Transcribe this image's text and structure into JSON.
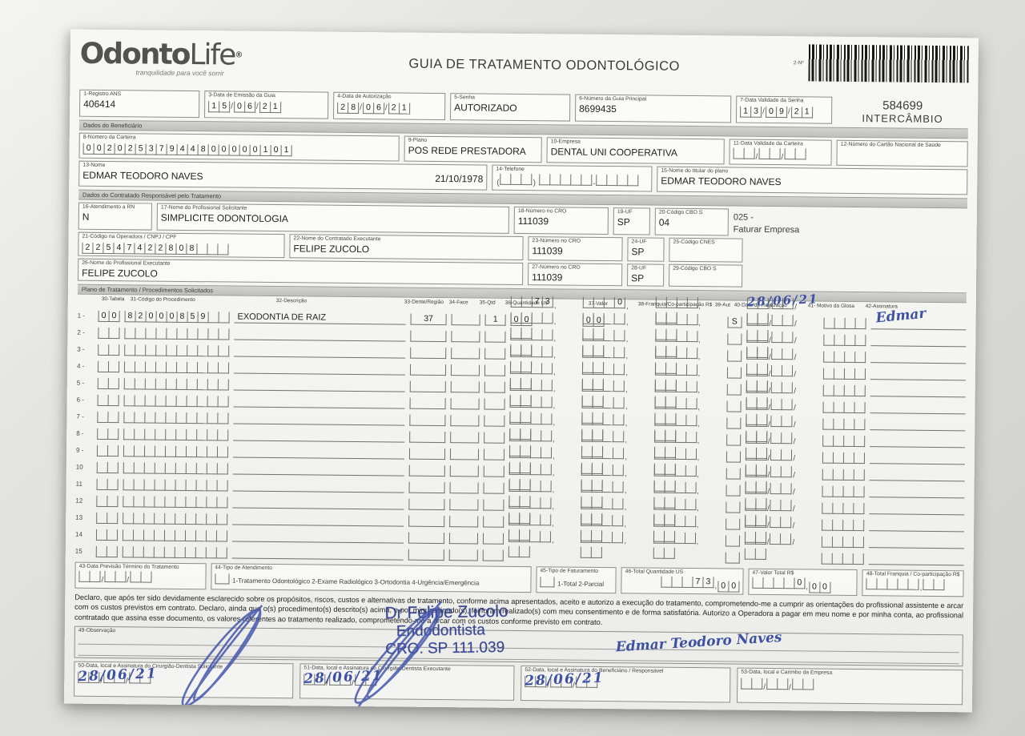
{
  "empty": "",
  "header": {
    "logo1": "Odonto",
    "logo2": "Life",
    "reg": "®",
    "tagline": "tranquilidade para você sorrir",
    "title": "GUIA DE TRATAMENTO ODONTOLÓGICO",
    "barcode_label": "2-Nº",
    "guide_number": "584699",
    "guide_tag": "INTERCÂMBIO"
  },
  "top": {
    "f1": {
      "label": "1-Registro ANS",
      "value": "406414"
    },
    "f3": {
      "label": "3-Data de Emissão da Guia",
      "dd": "15",
      "mm": "06",
      "yy": "21"
    },
    "f4": {
      "label": "4-Data de Autorização",
      "dd": "28",
      "mm": "06",
      "yy": "21"
    },
    "f5": {
      "label": "5-Senha",
      "value": "AUTORIZADO"
    },
    "f6": {
      "label": "6-Número da Guia Principal",
      "value": "8699435"
    },
    "f7": {
      "label": "7-Data Validade da Senha",
      "dd": "13",
      "mm": "09",
      "yy": "21"
    }
  },
  "ben": {
    "bar": "Dados do Beneficiário",
    "f8": {
      "label": "8-Número da Carteira",
      "digits": "00202537944800000101"
    },
    "f9": {
      "label": "9-Plano",
      "value": "POS REDE PRESTADORA"
    },
    "f10": {
      "label": "10-Empresa",
      "value": "DENTAL UNI  COOPERATIVA"
    },
    "f11": {
      "label": "11-Data Validade da Carteira"
    },
    "f12": {
      "label": "12-Número do Cartão Nacional de Saúde"
    },
    "f13": {
      "label": "13-Nome",
      "value": "EDMAR TEODORO NAVES",
      "nasc": "21/10/1978"
    },
    "f14": {
      "label": "14-Telefone"
    },
    "f15": {
      "label": "15-Nome do titular do plano",
      "value": "EDMAR TEODORO NAVES"
    }
  },
  "con": {
    "bar": "Dados do Contratado Responsável pelo Tratamento",
    "f16": {
      "label": "16-Atendimento a RN",
      "value": "N"
    },
    "f17": {
      "label": "17-Nome do Profissional Solicitante",
      "value": "SIMPLICITE ODONTOLOGIA"
    },
    "f18": {
      "label": "18-Número no CRO",
      "value": "111039"
    },
    "f19": {
      "label": "19-UF",
      "value": "SP"
    },
    "f20": {
      "label": "20-Código CBO S",
      "value": "04"
    },
    "note1": "025 -",
    "note2": "Faturar Empresa",
    "f21": {
      "label": "21-Código na Operadora / CNPJ / CPF",
      "digits": "22547422808"
    },
    "f22": {
      "label": "22-Nome do Contratado Executante",
      "value": "FELIPE ZUCOLO"
    },
    "f23": {
      "label": "23-Número no CRO",
      "value": "111039"
    },
    "f24": {
      "label": "24-UF",
      "value": "SP"
    },
    "f25": {
      "label": "25-Código CNES",
      "value": ""
    },
    "f26": {
      "label": "26-Nome do Profissional Executante",
      "value": "FELIPE ZUCOLO"
    },
    "f27": {
      "label": "27-Número no CRO",
      "value": "111039"
    },
    "f28": {
      "label": "28-UF",
      "value": "SP"
    },
    "f29": {
      "label": "29-Código CBO S",
      "value": ""
    }
  },
  "plano": {
    "bar": "Plano de Tratamento / Procedimentos Solicitados",
    "cols": [
      "30-Tabela",
      "31-Código do Procedimento",
      "32-Descrição",
      "33-Dente/Região",
      "34-Face",
      "35-Qtd",
      "36-Quantidade US",
      "37-Valor",
      "38-Franquia/Co-participação R$",
      "39-Aut",
      "40-Data de Realização",
      "41- Motivo da Glosa",
      "42-Assinatura"
    ],
    "row_labels": [
      "1 -",
      "2 -",
      "3 -",
      "4 -",
      "5 -",
      "6 -",
      "7 -",
      "8 -",
      "9 -",
      "10",
      "11",
      "12",
      "13",
      "14",
      "15"
    ],
    "row1": {
      "tabela": "00",
      "codigo": "82000859",
      "desc": "EXODONTIA DE RAIZ",
      "dente": "37",
      "face": "",
      "qtd": "1",
      "us_int": "  73",
      "us_dec": "00",
      "valor_int": "   0",
      "valor_dec": "00",
      "aut": "S",
      "data_hand": "28/06/21",
      "assin_hand": "Edmar"
    }
  },
  "tot": {
    "f43": {
      "label": "43-Data Previsão Término do Tratamento"
    },
    "f44": {
      "label": "44-Tipo de Atendimento",
      "opts": "1-Tratamento Odontológico  2-Exame Radiológico  3-Ortodontia  4-Urgência/Emergência"
    },
    "f45": {
      "label": "45-Tipo de Faturamento",
      "opts": "1-Total  2-Parcial"
    },
    "f46": {
      "label": "46-Total Quantidade US",
      "int": "   73",
      "dec": "00"
    },
    "f47": {
      "label": "47-Valor Total R$",
      "int": "    0",
      "dec": "00"
    },
    "f48": {
      "label": "48-Total Franquia / Co-participação R$",
      "int": "",
      "dec": ""
    }
  },
  "decl": {
    "text": "Declaro, que após ter sido devidamente esclarecido sobre os propósitos, riscos, custos e alternativas de tratamento, conforme acima apresentados, aceito e autorizo a execução do tratamento, comprometendo-me a cumprir as orientações do profissional assistente e arcar com os custos previstos em contrato. Declaro, ainda que o(s) procedimento(s) descrito(s) acima, e por mim assinado(s), foi/foram realizado(s) com meu consentimento e de forma satisfatória. Autorizo a Operadora a pagar em meu nome e por minha conta, ao profissional contratado que assina esse documento, os valores referentes ao tratamento realizado, comprometendo-me a arcar com os custos conforme previsto em contrato."
  },
  "obs": {
    "label": "49-Observação"
  },
  "stamp": {
    "l1": "Dr Felipe Zucolo",
    "l2": "Endodontista",
    "l3": "CRO. SP 111.039"
  },
  "sigs": {
    "f50": {
      "label": "50-Data, local e Assinatura do Cirurgião-Dentista Solicitante",
      "hand": "28/06/21"
    },
    "f51": {
      "label": "51-Data, local e Assinatura do Cirurgião-Dentista Executante",
      "hand": "28/06/21"
    },
    "f52": {
      "label": "52-Data, local e Assinatura do Beneficiário / Responsável",
      "hand": "28/06/21",
      "sig": "Edmar Teodoro Naves"
    },
    "f53": {
      "label": "53-Data, local e Carimbo da Empresa"
    }
  }
}
